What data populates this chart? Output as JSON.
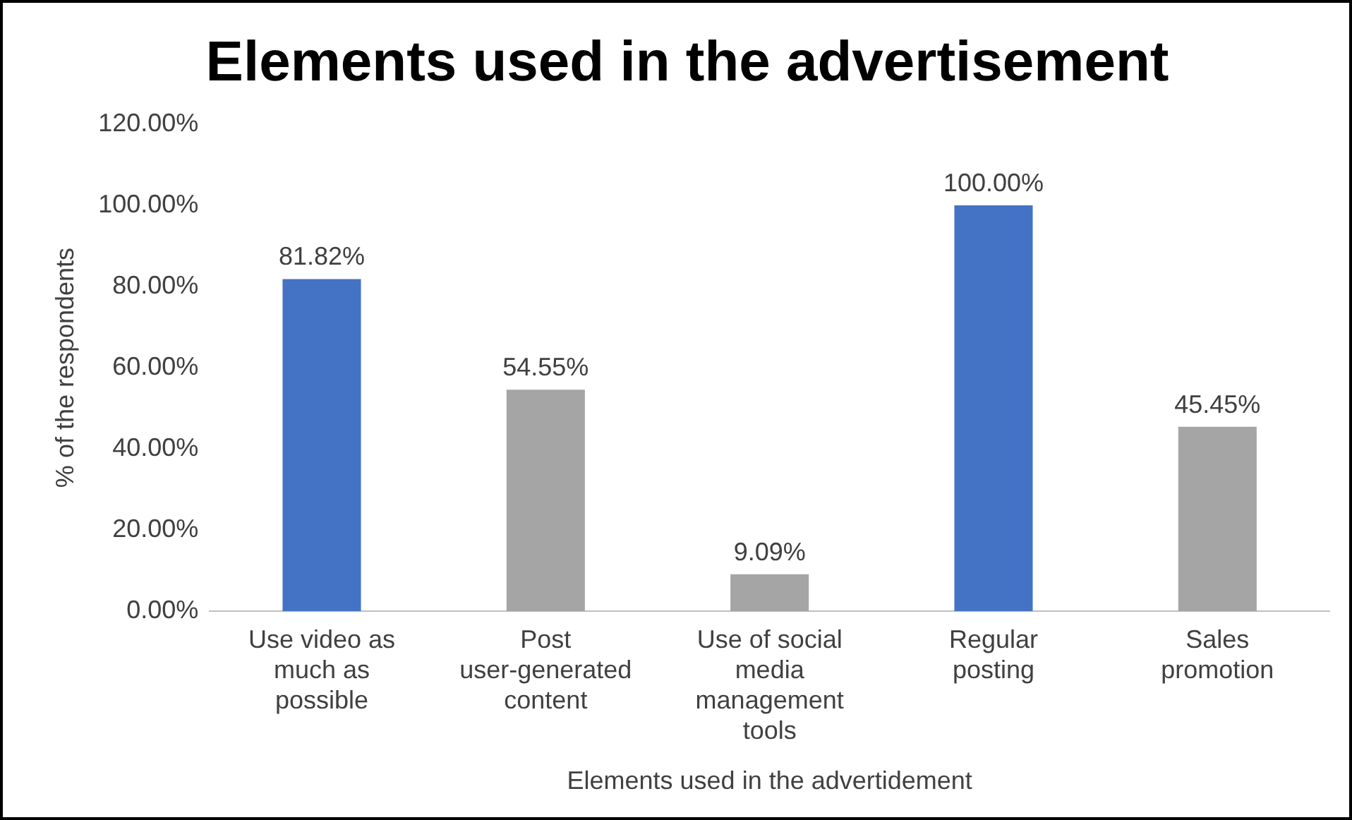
{
  "chart_data": {
    "type": "bar",
    "title": "Elements used in the advertisement",
    "xlabel": "Elements used in the advertidement",
    "ylabel": "% of the respondents",
    "categories": [
      "Use video as much as possible",
      "Post user-generated content",
      "Use of social media management tools",
      "Regular posting",
      "Sales promotion"
    ],
    "values": [
      81.82,
      54.55,
      9.09,
      100,
      45.45
    ],
    "colors": [
      "#4472c4",
      "#a5a5a5",
      "#a5a5a5",
      "#4472c4",
      "#a5a5a5"
    ],
    "value_labels": [
      "81.82%",
      "54.55%",
      "9.09%",
      "100.00%",
      "45.45%"
    ],
    "ylim": [
      0,
      120
    ],
    "yticks": [
      {
        "value": 0,
        "label": "0.00%"
      },
      {
        "value": 20,
        "label": "20.00%"
      },
      {
        "value": 40,
        "label": "40.00%"
      },
      {
        "value": 60,
        "label": "60.00%"
      },
      {
        "value": 80,
        "label": "80.00%"
      },
      {
        "value": 100,
        "label": "100.00%"
      },
      {
        "value": 120,
        "label": "120.00%"
      }
    ],
    "grid": false,
    "legend": false
  }
}
